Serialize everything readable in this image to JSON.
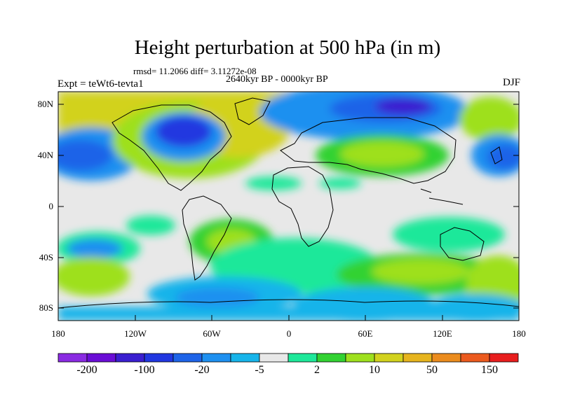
{
  "header": {
    "title": "Height perturbation at 500 hPa (in m)",
    "rmsd_text": "rmsd= 11.2066 diff= 3.11272e-08",
    "period": "2640kyr BP - 0000kyr BP",
    "experiment": "Expt = teWt6-tevta1",
    "season": "DJF"
  },
  "axes": {
    "y_ticks": [
      "80N",
      "40N",
      "0",
      "40S",
      "80S"
    ],
    "x_ticks": [
      "180",
      "120W",
      "60W",
      "0",
      "60E",
      "120E",
      "180"
    ]
  },
  "colorbar": {
    "colors": [
      "#8a2be2",
      "#6a0dd6",
      "#3a1fd0",
      "#2137e0",
      "#1e64e8",
      "#1e90f0",
      "#17b4ea",
      "#e8e8e8",
      "#1ee89a",
      "#32d232",
      "#9ee01e",
      "#d2d21e",
      "#e6b41e",
      "#eb8c1e",
      "#eb5a1e",
      "#e81e1e"
    ],
    "labels": [
      "-200",
      "-100",
      "-20",
      "-5",
      "2",
      "10",
      "50",
      "150"
    ]
  }
}
